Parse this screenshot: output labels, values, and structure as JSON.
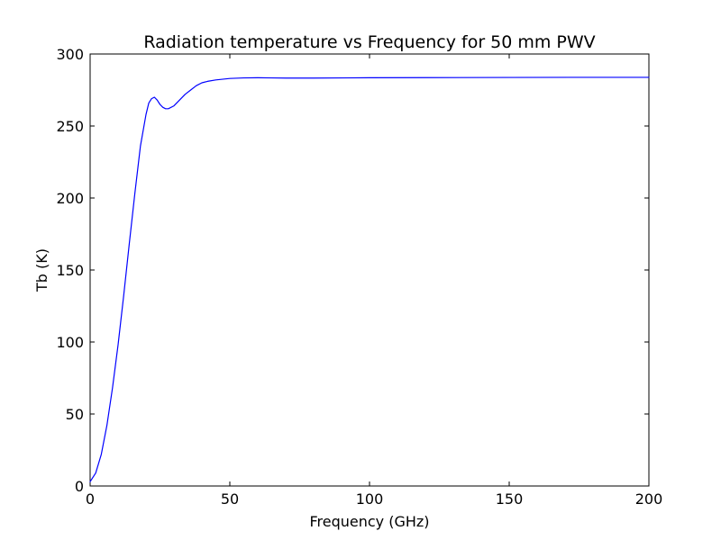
{
  "chart_data": {
    "type": "line",
    "title": "Radiation temperature vs Frequency for 50 mm PWV",
    "xlabel": "Frequency (GHz)",
    "ylabel": "Tb (K)",
    "xlim": [
      0,
      200
    ],
    "ylim": [
      0,
      300
    ],
    "xticks": [
      0,
      50,
      100,
      150,
      200
    ],
    "yticks": [
      0,
      50,
      100,
      150,
      200,
      250,
      300
    ],
    "grid": false,
    "series": [
      {
        "color": "#0000ff",
        "x": [
          0,
          2,
          4,
          6,
          8,
          10,
          12,
          14,
          16,
          18,
          20,
          21,
          22,
          23,
          24,
          25,
          26,
          27,
          28,
          30,
          32,
          34,
          36,
          38,
          40,
          42,
          45,
          50,
          55,
          60,
          65,
          70,
          80,
          100,
          120,
          150,
          180,
          200
        ],
        "y": [
          3,
          9,
          22,
          42,
          68,
          98,
          132,
          168,
          203,
          236,
          258,
          266,
          269,
          270,
          268,
          265,
          263,
          262,
          262,
          264,
          268,
          272,
          275,
          278,
          280,
          281,
          282,
          283,
          283.4,
          283.5,
          283.4,
          283.3,
          283.3,
          283.5,
          283.6,
          283.7,
          283.8,
          283.8
        ]
      }
    ]
  }
}
